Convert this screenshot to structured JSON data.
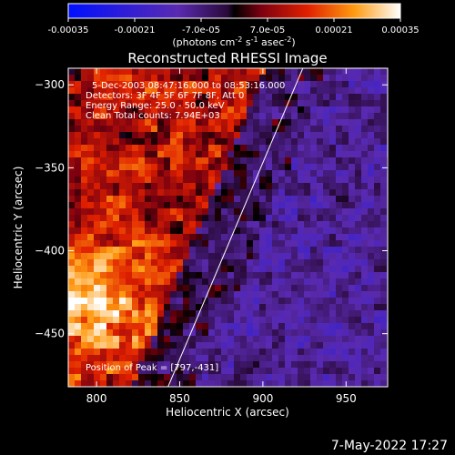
{
  "colorbar": {
    "ticks": [
      "-0.00035",
      "-0.00021",
      "-7.0e-05",
      "7.0e-05",
      "0.00021",
      "0.00035"
    ],
    "values": [
      -0.00035,
      -0.00021,
      -7e-05,
      7e-05,
      0.00021,
      0.00035
    ],
    "unit_prefix": "(photons cm",
    "unit_sup1": "-2",
    "unit_mid": " s",
    "unit_sup2": "-1",
    "unit_suffix": " asec",
    "unit_sup3": "-2",
    "unit_close": ")"
  },
  "chart_data": {
    "type": "heatmap",
    "title": "Reconstructed RHESSI Image",
    "xlabel": "Heliocentric X (arcsec)",
    "ylabel": "Heliocentric Y (arcsec)",
    "xlim": [
      783,
      975
    ],
    "ylim": [
      -482,
      -290
    ],
    "xticks": [
      800,
      850,
      900,
      950
    ],
    "yticks": [
      -300,
      -350,
      -400,
      -450
    ],
    "color_range": [
      -0.00035,
      0.00035
    ],
    "colormap": "blue-purple-red-yellow-white",
    "annotations": [
      "5-Dec-2003 08:47:16.000 to 08:53:16.000",
      "Detectors: 3F 4F 5F 6F 7F 8F, Att 0",
      "Energy Range: 25.0 - 50.0 keV",
      "Clean     Total counts: 7.94E+03"
    ],
    "peak_label": "Position of Peak = [797,-431]",
    "peak": [
      797,
      -431
    ],
    "limb_line": [
      [
        843,
        -482
      ],
      [
        924,
        -290
      ]
    ]
  },
  "footer": {
    "date": "7-May-2022 17:27"
  },
  "colors": {
    "background": "#000000",
    "text": "#ffffff"
  }
}
